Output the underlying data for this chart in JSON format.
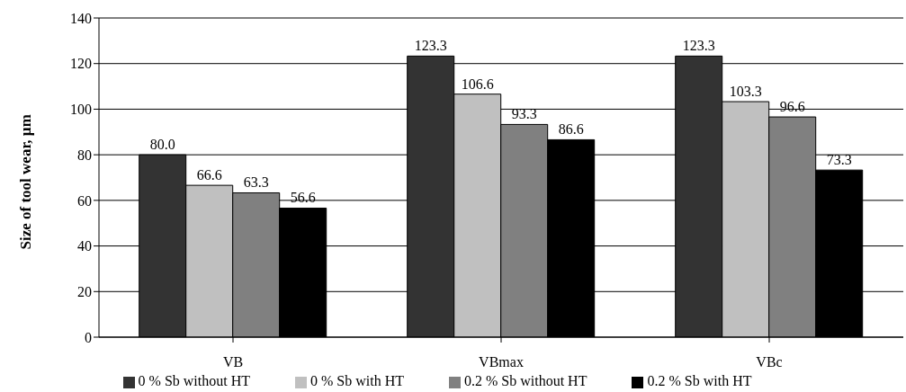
{
  "chart_data": {
    "type": "bar",
    "ylabel": "Size of tool wear, µm",
    "categories": [
      "VB",
      "VBmax",
      "VBc"
    ],
    "series": [
      {
        "name": "0 % Sb without HT",
        "color": "#333333",
        "values": [
          80.0,
          123.3,
          123.3
        ],
        "value_labels": [
          "80.0",
          "123.3",
          "123.3"
        ]
      },
      {
        "name": "0 % Sb with HT",
        "color": "#c0c0c0",
        "values": [
          66.6,
          106.6,
          103.3
        ],
        "value_labels": [
          "66.6",
          "106.6",
          "103.3"
        ]
      },
      {
        "name": "0.2 % Sb without HT",
        "color": "#808080",
        "values": [
          63.3,
          93.3,
          96.6
        ],
        "value_labels": [
          "63.3",
          "93.3",
          "96.6"
        ]
      },
      {
        "name": "0.2 % Sb with HT",
        "color": "#000000",
        "values": [
          56.6,
          86.6,
          73.3
        ],
        "value_labels": [
          "56.6",
          "86.6",
          "73.3"
        ]
      }
    ],
    "ylim": [
      0,
      140
    ],
    "yticks": [
      0,
      20,
      40,
      60,
      80,
      100,
      120,
      140
    ],
    "grid": "y",
    "legend": "bottom"
  }
}
